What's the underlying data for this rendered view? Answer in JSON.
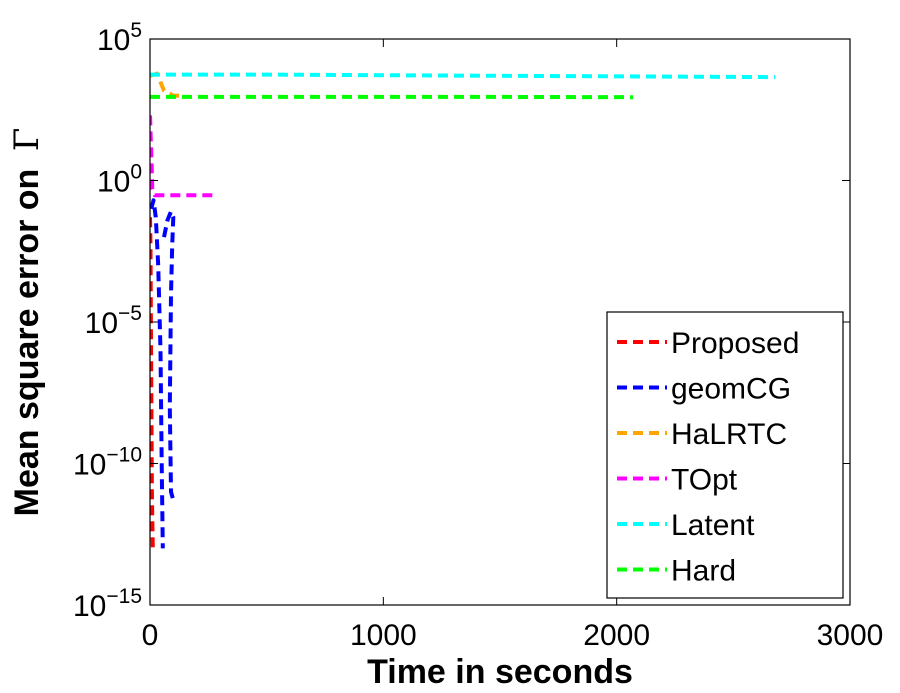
{
  "chart_data": {
    "type": "line",
    "title": "",
    "xlabel": "Time in seconds",
    "ylabel": "Mean square error on",
    "ylabel_symbol": "Γ",
    "xlim": [
      0,
      3000
    ],
    "ylim": [
      1e-15,
      100000.0
    ],
    "yscale": "log",
    "grid": false,
    "legend_position": "bottom-right",
    "x_ticks": [
      {
        "value": 0,
        "label": "0"
      },
      {
        "value": 1000,
        "label": "1000"
      },
      {
        "value": 2000,
        "label": "2000"
      },
      {
        "value": 3000,
        "label": "3000"
      }
    ],
    "y_ticks": [
      {
        "value": 100000.0,
        "base": "10",
        "exp": "5"
      },
      {
        "value": 1.0,
        "base": "10",
        "exp": "0"
      },
      {
        "value": 1e-05,
        "base": "10",
        "exp": "−5"
      },
      {
        "value": 1e-10,
        "base": "10",
        "exp": "−10"
      },
      {
        "value": 1e-15,
        "base": "10",
        "exp": "−15"
      }
    ],
    "series": [
      {
        "name": "Proposed",
        "color": "#ff0000",
        "style": "dashed",
        "points": [
          [
            0,
            0.05
          ],
          [
            2,
            0.005
          ],
          [
            4,
            1e-05
          ],
          [
            6,
            1e-08
          ],
          [
            8,
            1e-11
          ],
          [
            10,
            1e-12
          ],
          [
            12,
            1e-13
          ]
        ]
      },
      {
        "name": "geomCG",
        "color": "#0000ff",
        "style": "dashed",
        "points": [
          [
            5,
            0.1
          ],
          [
            15,
            0.2
          ],
          [
            25,
            0.05
          ],
          [
            35,
            0.001
          ],
          [
            45,
            1e-06
          ],
          [
            50,
            1e-10
          ],
          [
            55,
            1e-13
          ]
        ]
      },
      {
        "name": "geomCG",
        "color": "#0000ff",
        "style": "dashed",
        "points": [
          [
            60,
            0.01
          ],
          [
            75,
            0.04
          ],
          [
            90,
            0.08
          ],
          [
            100,
            0.05
          ],
          [
            95,
            0.005
          ],
          [
            90,
            0.0001
          ],
          [
            85,
            1e-08
          ],
          [
            90,
            1e-11
          ],
          [
            100,
            5e-12
          ]
        ]
      },
      {
        "name": "HaLRTC",
        "color": "#ffa500",
        "style": "dashed",
        "points": [
          [
            0,
            5000
          ],
          [
            30,
            6000
          ],
          [
            60,
            1500
          ],
          [
            100,
            1000
          ],
          [
            150,
            1000
          ]
        ]
      },
      {
        "name": "TOpt",
        "color": "#ff00ff",
        "style": "dashed",
        "points": [
          [
            0,
            200
          ],
          [
            5,
            10
          ],
          [
            10,
            0.5
          ],
          [
            20,
            0.3
          ],
          [
            60,
            0.3
          ],
          [
            150,
            0.3
          ],
          [
            280,
            0.3
          ]
        ]
      },
      {
        "name": "Latent",
        "color": "#00ffff",
        "style": "dashed",
        "points": [
          [
            0,
            5500
          ],
          [
            500,
            5500
          ],
          [
            1500,
            5000
          ],
          [
            2680,
            4500
          ]
        ]
      },
      {
        "name": "Hard",
        "color": "#00ff00",
        "style": "dashed",
        "points": [
          [
            0,
            900
          ],
          [
            500,
            900
          ],
          [
            1500,
            900
          ],
          [
            2070,
            880
          ]
        ]
      }
    ],
    "legend": [
      {
        "label": "Proposed",
        "color": "#ff0000"
      },
      {
        "label": "geomCG",
        "color": "#0000ff"
      },
      {
        "label": "HaLRTC",
        "color": "#ffa500"
      },
      {
        "label": "TOpt",
        "color": "#ff00ff"
      },
      {
        "label": "Latent",
        "color": "#00ffff"
      },
      {
        "label": "Hard",
        "color": "#00ff00"
      }
    ]
  }
}
